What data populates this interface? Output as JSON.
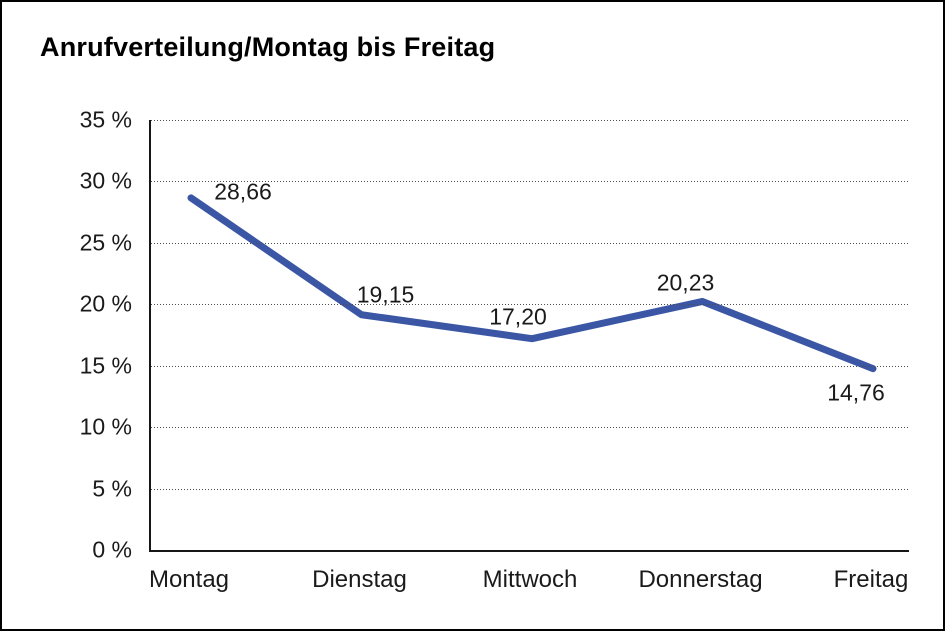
{
  "chart": {
    "title": "Anrufverteilung/Montag bis Freitag"
  },
  "chart_data": {
    "type": "line",
    "title": "Anrufverteilung/Montag bis Freitag",
    "categories": [
      "Montag",
      "Dienstag",
      "Mittwoch",
      "Donnerstag",
      "Freitag"
    ],
    "values": [
      28.66,
      19.15,
      17.2,
      20.23,
      14.76
    ],
    "point_labels": [
      "28,66",
      "19,15",
      "17,20",
      "20,23",
      "14,76"
    ],
    "xlabel": "",
    "ylabel": "",
    "ylim": [
      0,
      35
    ],
    "ytick_step": 5,
    "ytick_labels": [
      "35 %",
      "30 %",
      "25 %",
      "20 %",
      "15 %",
      "10 %",
      "5 %",
      "0 %"
    ],
    "grid": "horizontal-dotted",
    "legend": "none",
    "line_color": "#3a56a5",
    "axis_color": "#161616",
    "text_color": "#1a1a1a"
  }
}
